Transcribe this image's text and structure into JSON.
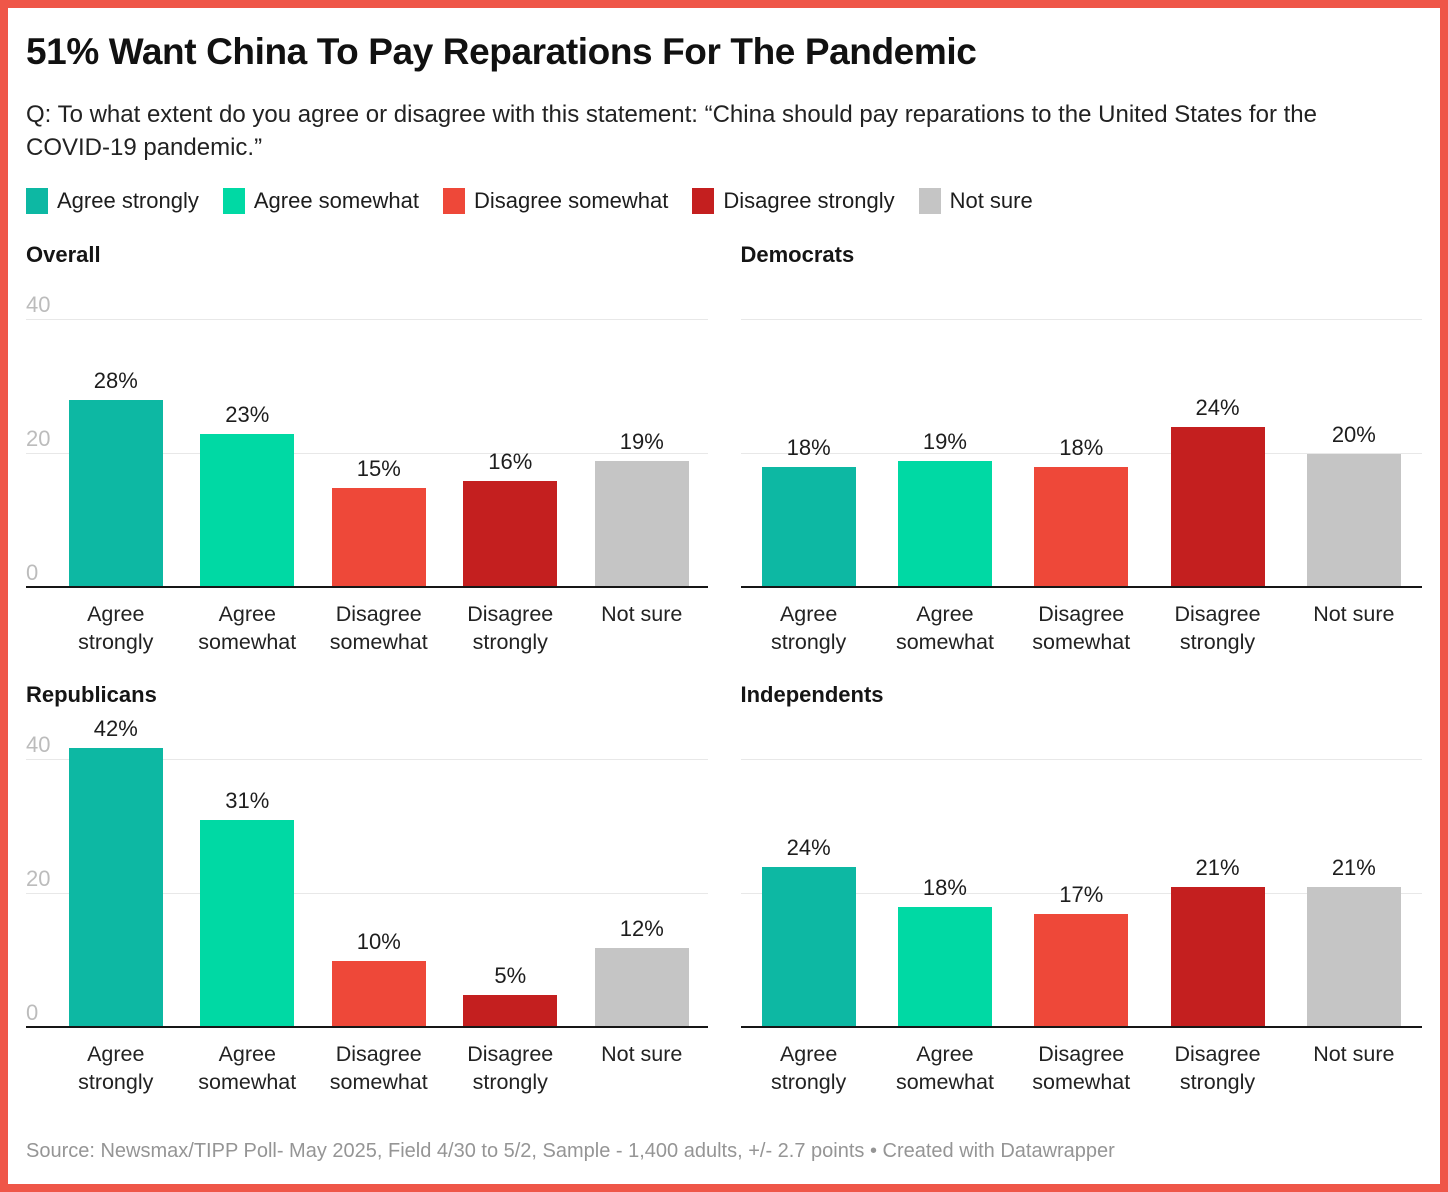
{
  "header": {
    "title": "51% Want China To Pay Reparations For The Pandemic",
    "description": "Q: To what extent do you agree or disagree with this statement: “China should pay reparations to the United States for the COVID-19 pandemic.”"
  },
  "chart_data": {
    "type": "bar",
    "title": "51% Want China To Pay Reparations For The Pandemic",
    "categories": [
      "Agree strongly",
      "Agree somewhat",
      "Disagree somewhat",
      "Disagree strongly",
      "Not sure"
    ],
    "category_colors": [
      "#0db8a3",
      "#00d9a4",
      "#ee4839",
      "#c41f1f",
      "#c5c5c5"
    ],
    "panels": [
      {
        "title": "Overall",
        "values": [
          28,
          23,
          15,
          16,
          19
        ],
        "show_y_ticks": true
      },
      {
        "title": "Democrats",
        "values": [
          18,
          19,
          18,
          24,
          20
        ],
        "show_y_ticks": false
      },
      {
        "title": "Republicans",
        "values": [
          42,
          31,
          10,
          5,
          12
        ],
        "show_y_ticks": true
      },
      {
        "title": "Independents",
        "values": [
          24,
          18,
          17,
          21,
          21
        ],
        "show_y_ticks": false
      }
    ],
    "y_ticks": [
      0,
      20,
      40
    ],
    "ylim": [
      0,
      46.5
    ],
    "value_suffix": "%",
    "grid": true,
    "legend_position": "top"
  },
  "footer": {
    "text": "Source: Newsmax/TIPP Poll- May 2025, Field 4/30 to 5/2, Sample - 1,400 adults, +/- 2.7 points • Created with Datawrapper"
  },
  "frame": {
    "border_color": "#ef5648"
  }
}
